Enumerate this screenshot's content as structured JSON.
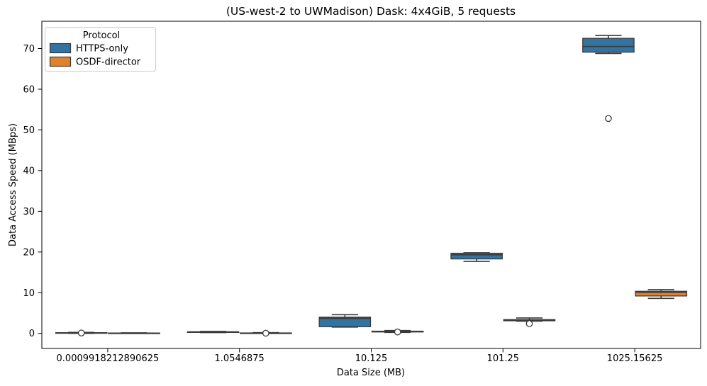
{
  "chart_data": {
    "type": "boxplot",
    "title": "(US-west-2 to UWMadison) Dask: 4x4GiB, 5 requests",
    "xlabel": "Data Size (MB)",
    "ylabel": "Data Access Speed (MBps)",
    "categories": [
      "0.0009918212890625",
      "1.0546875",
      "10.125",
      "101.25",
      "1025.15625"
    ],
    "y_ticks": [
      0,
      10,
      20,
      30,
      40,
      50,
      60,
      70
    ],
    "ylim": [
      -3.7,
      76.7
    ],
    "grid": false,
    "legend": {
      "title": "Protocol",
      "position": "upper-left"
    },
    "colors": {
      "box_edge": "#3A3A3A",
      "spine": "#000000",
      "legend_border": "#cccccc"
    },
    "series": [
      {
        "name": "HTTPS-only",
        "color": "#3274A1",
        "boxes": [
          {
            "whislo": 0.0,
            "q1": 0.05,
            "med": 0.1,
            "q3": 0.18,
            "whishi": 0.25,
            "outliers": [
              0.1
            ]
          },
          {
            "whislo": 0.2,
            "q1": 0.28,
            "med": 0.35,
            "q3": 0.4,
            "whishi": 0.5,
            "outliers": []
          },
          {
            "whislo": 1.55,
            "q1": 1.65,
            "med": 3.7,
            "q3": 4.0,
            "whishi": 4.6,
            "outliers": []
          },
          {
            "whislo": 17.7,
            "q1": 18.3,
            "med": 19.3,
            "q3": 19.7,
            "whishi": 19.8,
            "outliers": []
          },
          {
            "whislo": 68.8,
            "q1": 69.1,
            "med": 70.5,
            "q3": 72.5,
            "whishi": 73.2,
            "outliers": [
              52.8
            ]
          }
        ]
      },
      {
        "name": "OSDF-director",
        "color": "#E1812C",
        "boxes": [
          {
            "whislo": 0.0,
            "q1": 0.02,
            "med": 0.06,
            "q3": 0.1,
            "whishi": 0.15,
            "outliers": []
          },
          {
            "whislo": 0.0,
            "q1": 0.03,
            "med": 0.07,
            "q3": 0.12,
            "whishi": 0.18,
            "outliers": [
              0.05
            ]
          },
          {
            "whislo": 0.25,
            "q1": 0.35,
            "med": 0.45,
            "q3": 0.55,
            "whishi": 0.7,
            "outliers": [
              0.35
            ]
          },
          {
            "whislo": 3.0,
            "q1": 3.1,
            "med": 3.25,
            "q3": 3.4,
            "whishi": 3.8,
            "outliers": [
              2.4
            ]
          },
          {
            "whislo": 8.6,
            "q1": 9.2,
            "med": 10.1,
            "q3": 10.35,
            "whishi": 10.75,
            "outliers": []
          }
        ]
      }
    ]
  }
}
